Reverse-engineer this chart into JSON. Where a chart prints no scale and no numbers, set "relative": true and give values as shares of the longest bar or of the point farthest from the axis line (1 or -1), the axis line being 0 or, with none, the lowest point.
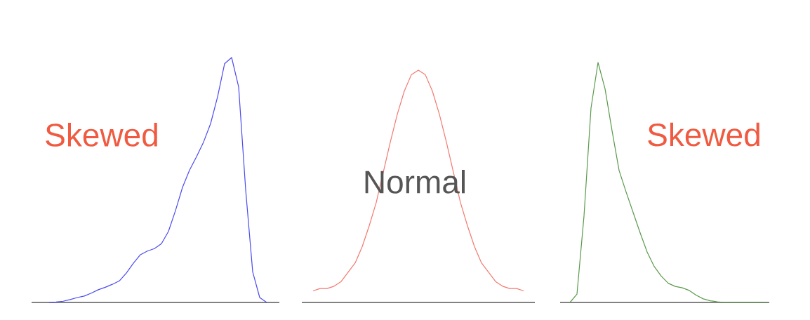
{
  "chart_data": [
    {
      "type": "line",
      "relative": true,
      "categories": [
        null,
        null,
        null,
        null,
        null,
        null,
        null,
        null,
        null,
        null,
        null,
        null,
        null,
        null,
        null,
        null,
        null,
        null,
        null,
        null,
        null,
        null,
        null,
        null,
        null,
        null,
        null,
        null,
        null,
        null,
        null,
        null,
        null
      ],
      "series": [
        {
          "color": "#4b4bf0",
          "values": [
            null,
            0,
            0.002,
            0.005,
            0.012,
            0.02,
            0.026,
            0.038,
            0.052,
            0.062,
            0.074,
            0.088,
            0.12,
            0.16,
            0.195,
            0.21,
            0.22,
            0.24,
            0.29,
            0.375,
            0.47,
            0.54,
            0.595,
            0.655,
            0.73,
            0.84,
            0.975,
            1,
            0.88,
            0.46,
            0.125,
            0.02,
            0
          ]
        }
      ],
      "annotations": [
        "Skewed"
      ]
    },
    {
      "type": "line",
      "relative": true,
      "categories": [
        null,
        null,
        null,
        null,
        null,
        null,
        null,
        null,
        null,
        null,
        null,
        null,
        null,
        null,
        null,
        null,
        null,
        null,
        null,
        null,
        null,
        null,
        null,
        null,
        null,
        null,
        null,
        null,
        null,
        null,
        null
      ],
      "series": [
        {
          "color": "#f27a70",
          "values": [
            0.05,
            0.06,
            0.06,
            0.07,
            0.09,
            0.13,
            0.17,
            0.24,
            0.33,
            0.43,
            0.56,
            0.69,
            0.81,
            0.91,
            0.98,
            1,
            0.98,
            0.91,
            0.81,
            0.69,
            0.56,
            0.43,
            0.33,
            0.24,
            0.17,
            0.13,
            0.09,
            0.07,
            0.06,
            0.06,
            0.05
          ]
        }
      ],
      "annotations": [
        "Normal"
      ]
    },
    {
      "type": "line",
      "relative": true,
      "categories": [
        null,
        null,
        null,
        null,
        null,
        null,
        null,
        null,
        null,
        null,
        null,
        null,
        null,
        null,
        null,
        null,
        null,
        null,
        null,
        null,
        null,
        null,
        null,
        null,
        null,
        null,
        null,
        null,
        null
      ],
      "series": [
        {
          "color": "#5a9a4c",
          "values": [
            0,
            0.035,
            0.36,
            0.81,
            1,
            0.89,
            0.715,
            0.55,
            0.46,
            0.375,
            0.29,
            0.21,
            0.15,
            0.11,
            0.08,
            0.067,
            0.061,
            0.05,
            0.03,
            0.015,
            0.007,
            0.003,
            0,
            0,
            0,
            0,
            0,
            0,
            0
          ]
        }
      ],
      "annotations": [
        "Skewed"
      ]
    }
  ]
}
